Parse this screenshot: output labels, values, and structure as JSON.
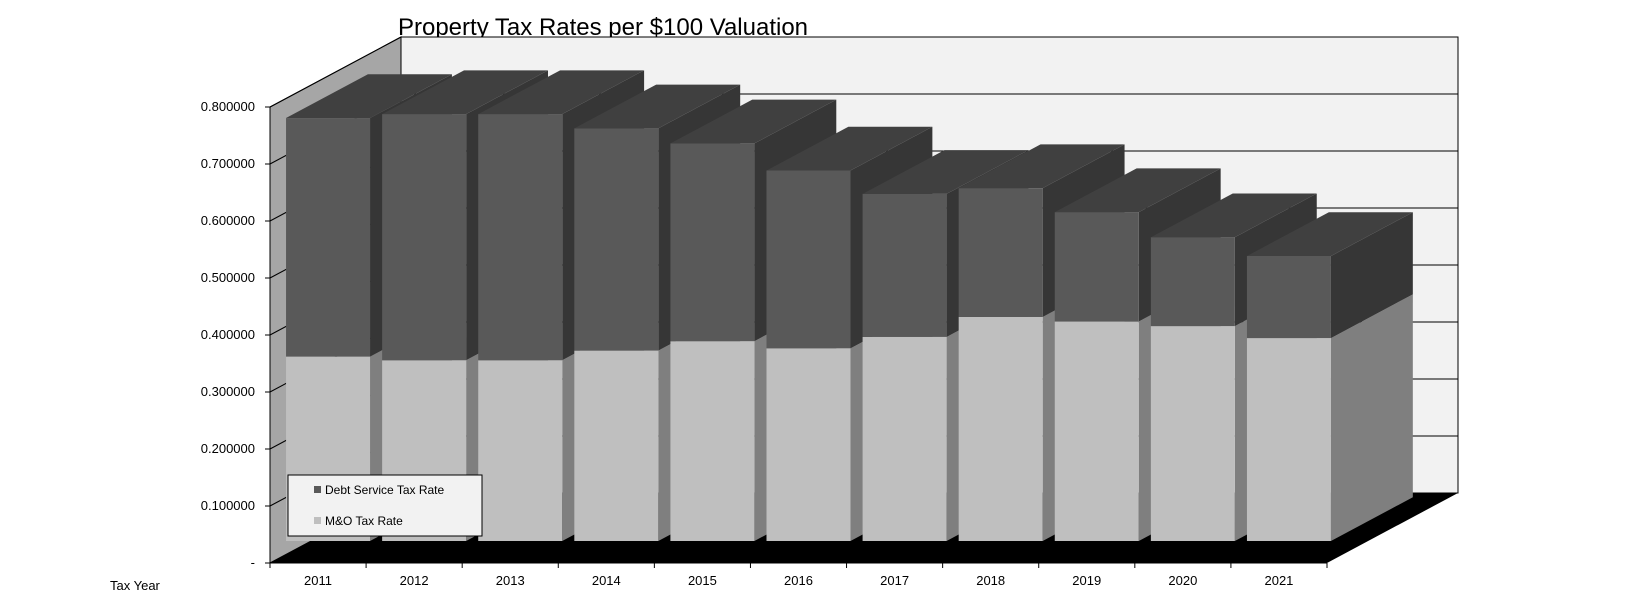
{
  "chart_data": {
    "type": "bar",
    "stacked": true,
    "three_d": true,
    "title": "Property Tax Rates per $100 Valuation",
    "xlabel": "Tax Year",
    "ylabel": "",
    "ylim": [
      0,
      0.8
    ],
    "y_tick_labels": [
      "-",
      "0.100000",
      "0.200000",
      "0.300000",
      "0.400000",
      "0.500000",
      "0.600000",
      "0.700000",
      "0.800000"
    ],
    "categories": [
      "2011",
      "2012",
      "2013",
      "2014",
      "2015",
      "2016",
      "2017",
      "2018",
      "2019",
      "2020",
      "2021"
    ],
    "series": [
      {
        "name": "M&O Tax Rate",
        "color": "#bfbfbf",
        "values": [
          0.3235,
          0.317,
          0.317,
          0.334,
          0.3505,
          0.338,
          0.358,
          0.393,
          0.385,
          0.377,
          0.356
        ]
      },
      {
        "name": "Debt Service Tax Rate",
        "color": "#595959",
        "values": [
          0.4185,
          0.432,
          0.432,
          0.39,
          0.347,
          0.312,
          0.251,
          0.226,
          0.192,
          0.156,
          0.144
        ]
      }
    ],
    "grid": true,
    "legend_position": "bottom-left"
  }
}
